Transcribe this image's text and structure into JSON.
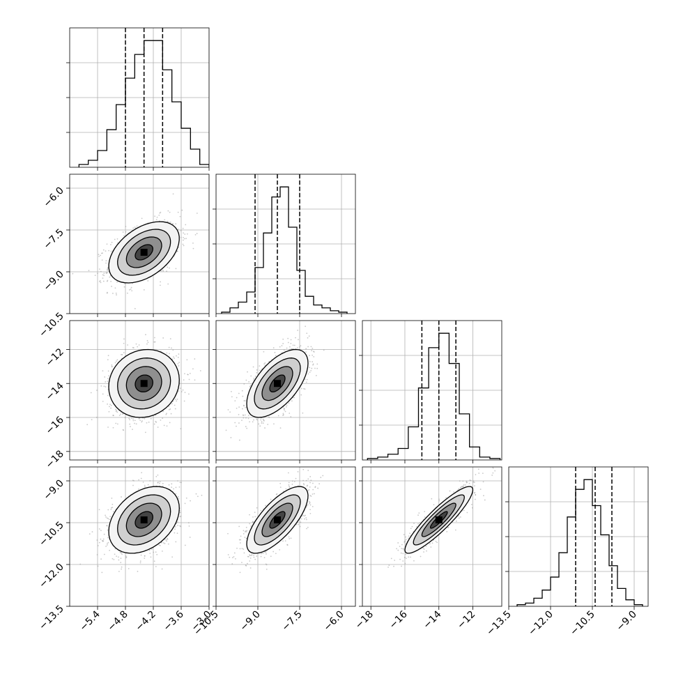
{
  "chart_data": {
    "type": "corner",
    "grid": true,
    "n_params": 4,
    "params": [
      {
        "range": [
          -6.0,
          -3.0
        ],
        "ticks": [
          -5.4,
          -4.8,
          -4.2,
          -3.6,
          -3.0
        ],
        "tick_labels": [
          "−5.4",
          "−4.8",
          "−4.2",
          "−3.6",
          "−3.0"
        ],
        "quantiles": [
          -4.8,
          -4.4,
          -4.0
        ]
      },
      {
        "range": [
          -10.5,
          -5.5
        ],
        "ticks": [
          -10.5,
          -9.0,
          -7.5,
          -6.0
        ],
        "tick_labels": [
          "−10.5",
          "−9.0",
          "−7.5",
          "−6.0"
        ],
        "quantiles": [
          -9.1,
          -8.3,
          -7.5
        ]
      },
      {
        "range": [
          -18.5,
          -10.3
        ],
        "ticks": [
          -18,
          -16,
          -14,
          -12
        ],
        "tick_labels": [
          "−18",
          "−16",
          "−14",
          "−12"
        ],
        "quantiles": [
          -15.0,
          -14.0,
          -13.0
        ]
      },
      {
        "range": [
          -13.5,
          -8.5
        ],
        "ticks": [
          -13.5,
          -12.0,
          -10.5,
          -9.0
        ],
        "tick_labels": [
          "−13.5",
          "−12.0",
          "−10.5",
          "−9.0"
        ],
        "quantiles": [
          -11.1,
          -10.4,
          -9.8
        ]
      }
    ],
    "histograms": [
      {
        "bin_edges": [
          -5.8,
          -5.6,
          -5.4,
          -5.2,
          -5.0,
          -4.8,
          -4.6,
          -4.4,
          -4.2,
          -4.0,
          -3.8,
          -3.6,
          -3.4,
          -3.2,
          -3.0
        ],
        "counts": [
          0.02,
          0.05,
          0.12,
          0.27,
          0.45,
          0.64,
          0.81,
          0.91,
          0.91,
          0.7,
          0.47,
          0.28,
          0.13,
          0.02
        ]
      },
      {
        "bin_edges": [
          -10.3,
          -10.0,
          -9.7,
          -9.4,
          -9.1,
          -8.8,
          -8.5,
          -8.2,
          -7.9,
          -7.6,
          -7.3,
          -7.0,
          -6.7,
          -6.4,
          -6.1,
          -5.8
        ],
        "counts": [
          0.01,
          0.04,
          0.08,
          0.15,
          0.32,
          0.56,
          0.81,
          0.88,
          0.6,
          0.3,
          0.12,
          0.06,
          0.04,
          0.02,
          0.01
        ]
      },
      {
        "bin_edges": [
          -18.2,
          -17.6,
          -17.0,
          -16.4,
          -15.8,
          -15.2,
          -14.6,
          -14.0,
          -13.4,
          -12.8,
          -12.2,
          -11.6,
          -11.0,
          -10.4
        ],
        "counts": [
          0.01,
          0.02,
          0.04,
          0.08,
          0.23,
          0.5,
          0.78,
          0.88,
          0.67,
          0.32,
          0.09,
          0.02,
          0.01
        ]
      },
      {
        "bin_edges": [
          -13.2,
          -12.9,
          -12.6,
          -12.3,
          -12.0,
          -11.7,
          -11.4,
          -11.1,
          -10.8,
          -10.5,
          -10.2,
          -9.9,
          -9.6,
          -9.3,
          -9.0,
          -8.7
        ],
        "counts": [
          0.01,
          0.02,
          0.05,
          0.1,
          0.18,
          0.33,
          0.55,
          0.72,
          0.78,
          0.62,
          0.44,
          0.25,
          0.11,
          0.04,
          0.01
        ]
      }
    ],
    "pair_stats": [
      {
        "row": 1,
        "col": 0,
        "mean": [
          -4.4,
          -8.3
        ],
        "sd": [
          0.38,
          0.55
        ],
        "corr": 0.45
      },
      {
        "row": 2,
        "col": 0,
        "mean": [
          -4.4,
          -14.0
        ],
        "sd": [
          0.38,
          1.0
        ],
        "corr": 0.1
      },
      {
        "row": 2,
        "col": 1,
        "mean": [
          -8.3,
          -14.0
        ],
        "sd": [
          0.55,
          1.0
        ],
        "corr": 0.6
      },
      {
        "row": 3,
        "col": 0,
        "mean": [
          -4.4,
          -10.4
        ],
        "sd": [
          0.38,
          0.6
        ],
        "corr": 0.35
      },
      {
        "row": 3,
        "col": 1,
        "mean": [
          -8.3,
          -10.4
        ],
        "sd": [
          0.55,
          0.6
        ],
        "corr": 0.72
      },
      {
        "row": 3,
        "col": 2,
        "mean": [
          -14.0,
          -10.4
        ],
        "sd": [
          1.0,
          0.6
        ],
        "corr": 0.9
      }
    ],
    "contour_levels_sigma": [
      0.5,
      1.0,
      1.5,
      2.0
    ]
  }
}
